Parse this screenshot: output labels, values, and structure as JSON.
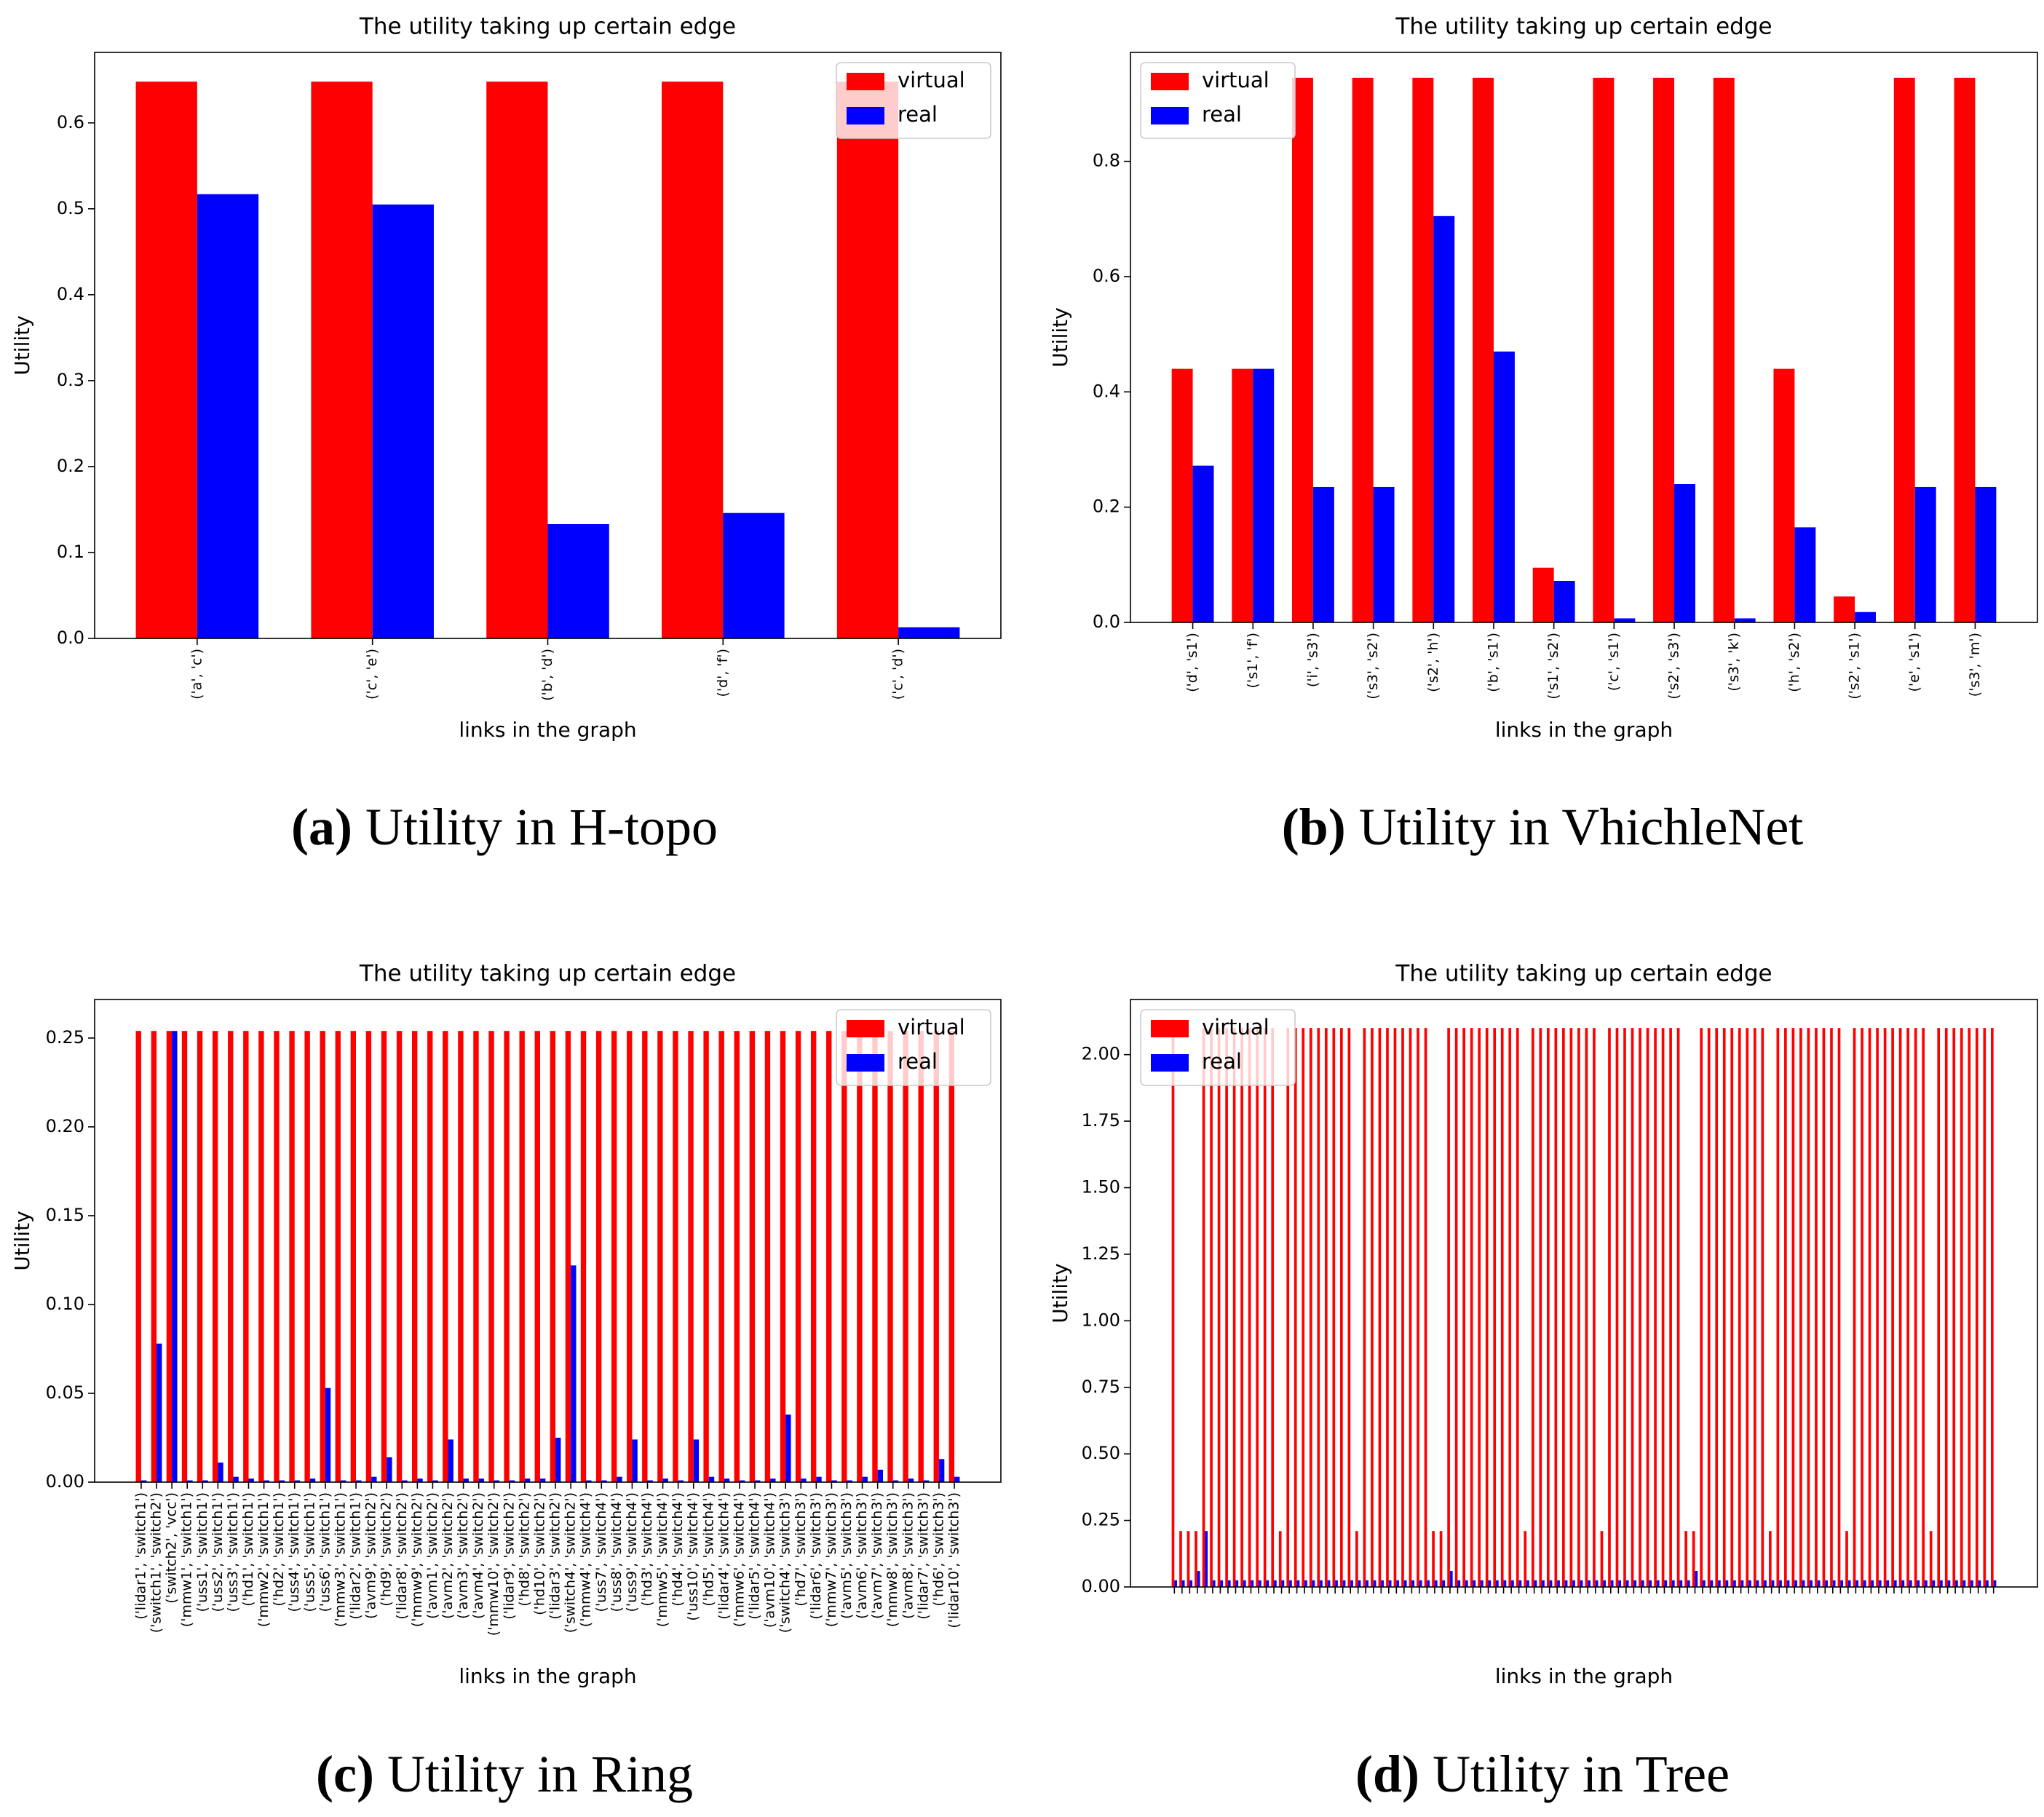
{
  "chart_data": [
    {
      "type": "bar",
      "title": "The utility taking up certain edge",
      "xlabel": "links in the graph",
      "ylabel": "Utility",
      "caption_label": "(a)",
      "caption": "Utility in H-topo",
      "legend": "upper right",
      "categories": [
        "('a', 'c')",
        "('c', 'e')",
        "('b', 'd')",
        "('d', 'f')",
        "('c', 'd')"
      ],
      "series": [
        {
          "name": "virtual",
          "color": "#ff0000",
          "values": [
            0.648,
            0.648,
            0.648,
            0.648,
            0.648
          ]
        },
        {
          "name": "real",
          "color": "#0000ff",
          "values": [
            0.517,
            0.505,
            0.133,
            0.146,
            0.013
          ]
        }
      ],
      "ylim": [
        0,
        0.682
      ],
      "yticks": [
        {
          "value": 0,
          "label": "0.0"
        },
        0.1,
        0.2,
        0.3,
        0.4,
        0.5,
        0.6
      ]
    },
    {
      "type": "bar",
      "title": "The utility taking up certain edge",
      "xlabel": "links in the graph",
      "ylabel": "Utility",
      "caption_label": "(b)",
      "caption": "Utility in VhichleNet",
      "legend": "upper left",
      "categories": [
        "('d', 's1')",
        "('s1', 'f')",
        "('i', 's3')",
        "('s3', 's2')",
        "('s2', 'h')",
        "('b', 's1')",
        "('s1', 's2')",
        "('c', 's1')",
        "('s2', 's3')",
        "('s3', 'k')",
        "('h', 's2')",
        "('s2', 's1')",
        "('e', 's1')",
        "('s3', 'm')"
      ],
      "series": [
        {
          "name": "virtual",
          "color": "#ff0000",
          "values": [
            0.44,
            0.44,
            0.945,
            0.945,
            0.945,
            0.945,
            0.095,
            0.945,
            0.945,
            0.945,
            0.44,
            0.045,
            0.945,
            0.945
          ]
        },
        {
          "name": "real",
          "color": "#0000ff",
          "values": [
            0.272,
            0.44,
            0.235,
            0.235,
            0.705,
            0.47,
            0.072,
            0.007,
            0.24,
            0.007,
            0.165,
            0.018,
            0.235,
            0.235
          ]
        }
      ],
      "ylim": [
        0,
        0.989
      ],
      "yticks": [
        {
          "value": 0,
          "label": "0.0"
        },
        0.2,
        0.4,
        0.6,
        0.8
      ]
    },
    {
      "type": "bar",
      "title": "The utility taking up certain edge",
      "xlabel": "links in the graph",
      "ylabel": "Utility",
      "caption_label": "(c)",
      "caption": "Utility in Ring",
      "legend": "upper right",
      "categories": [
        "('lidar1', 'switch1')",
        "('switch1', 'switch2')",
        "('switch2', 'vcc')",
        "('mmw1', 'switch1')",
        "('uss1', 'switch1')",
        "('uss2', 'switch1')",
        "('uss3', 'switch1')",
        "('hd1', 'switch1')",
        "('mmw2', 'switch1')",
        "('hd2', 'switch1')",
        "('uss4', 'switch1')",
        "('uss5', 'switch1')",
        "('uss6', 'switch1')",
        "('mmw3', 'switch1')",
        "('lidar2', 'switch1')",
        "('avm9', 'switch2')",
        "('hd9', 'switch2')",
        "('lidar8', 'switch2')",
        "('mmw9', 'switch2')",
        "('avm1', 'switch2')",
        "('avm2', 'switch2')",
        "('avm3', 'switch2')",
        "('avm4', 'switch2')",
        "('mmw10', 'switch2')",
        "('lidar9', 'switch2')",
        "('hd8', 'switch2')",
        "('hd10', 'switch2')",
        "('lidar3', 'switch2')",
        "('switch4', 'switch2')",
        "('mmw4', 'switch4')",
        "('uss7', 'switch4')",
        "('uss8', 'switch4')",
        "('uss9', 'switch4')",
        "('hd3', 'switch4')",
        "('mmw5', 'switch4')",
        "('hd4', 'switch4')",
        "('uss10', 'switch4')",
        "('hd5', 'switch4')",
        "('lidar4', 'switch4')",
        "('mmw6', 'switch4')",
        "('lidar5', 'switch4')",
        "('avm10', 'switch4')",
        "('switch4', 'switch3')",
        "('hd7', 'switch3')",
        "('lidar6', 'switch3')",
        "('mmw7', 'switch3')",
        "('avm5', 'switch3')",
        "('avm6', 'switch3')",
        "('avm7', 'switch3')",
        "('mmw8', 'switch3')",
        "('avm8', 'switch3')",
        "('lidar7', 'switch3')",
        "('hd6', 'switch3')",
        "('lidar10', 'switch3')"
      ],
      "series": [
        {
          "name": "virtual",
          "color": "#ff0000",
          "values": [
            0.254,
            0.254,
            0.254,
            0.254,
            0.254,
            0.254,
            0.254,
            0.254,
            0.254,
            0.254,
            0.254,
            0.254,
            0.254,
            0.254,
            0.254,
            0.254,
            0.254,
            0.254,
            0.254,
            0.254,
            0.254,
            0.254,
            0.254,
            0.254,
            0.254,
            0.254,
            0.254,
            0.254,
            0.254,
            0.254,
            0.254,
            0.254,
            0.254,
            0.254,
            0.254,
            0.254,
            0.254,
            0.254,
            0.254,
            0.254,
            0.254,
            0.254,
            0.254,
            0.254,
            0.254,
            0.254,
            0.254,
            0.254,
            0.254,
            0.254,
            0.254,
            0.254,
            0.254,
            0.254
          ]
        },
        {
          "name": "real",
          "color": "#0000ff",
          "values": [
            0.001,
            0.078,
            0.254,
            0.001,
            0.001,
            0.011,
            0.003,
            0.002,
            0.001,
            0.001,
            0.001,
            0.002,
            0.053,
            0.001,
            0.001,
            0.003,
            0.014,
            0.001,
            0.002,
            0.001,
            0.024,
            0.002,
            0.002,
            0.001,
            0.001,
            0.002,
            0.002,
            0.025,
            0.122,
            0.001,
            0.001,
            0.003,
            0.024,
            0.001,
            0.002,
            0.001,
            0.024,
            0.003,
            0.002,
            0.001,
            0.001,
            0.002,
            0.038,
            0.002,
            0.003,
            0.001,
            0.001,
            0.003,
            0.007,
            0.001,
            0.002,
            0.001,
            0.013,
            0.003
          ]
        }
      ],
      "ylim": [
        0,
        0.2717
      ],
      "yticks": [
        {
          "value": 0,
          "label": "0.00"
        },
        0.05,
        {
          "value": 0.1,
          "label": "0.10"
        },
        0.15,
        {
          "value": 0.2,
          "label": "0.20"
        },
        0.25
      ]
    },
    {
      "type": "bar",
      "title": "The utility taking up certain edge",
      "xlabel": "links in the graph",
      "ylabel": "Utility",
      "caption_label": "(d)",
      "caption": "Utility in Tree",
      "legend": "upper left",
      "categories": [
        null,
        null,
        null,
        null,
        null,
        null,
        null,
        null,
        null,
        null,
        null,
        null,
        null,
        null,
        null,
        null,
        null,
        null,
        null,
        null,
        null,
        null,
        null,
        null,
        null,
        null,
        null,
        null,
        null,
        null,
        null,
        null,
        null,
        null,
        null,
        null,
        null,
        null,
        null,
        null,
        null,
        null,
        null,
        null,
        null,
        null,
        null,
        null,
        null,
        null,
        null,
        null,
        null,
        null,
        null,
        null,
        null,
        null,
        null,
        null,
        null,
        null,
        null,
        null,
        null,
        null,
        null,
        null,
        null,
        null,
        null,
        null,
        null,
        null,
        null,
        null,
        null,
        null,
        null,
        null,
        null,
        null,
        null,
        null,
        null,
        null,
        null,
        null,
        null,
        null,
        null,
        null,
        null,
        null,
        null,
        null,
        null,
        null,
        null,
        null,
        null,
        null,
        null,
        null,
        null,
        null,
        null,
        null
      ],
      "series": [
        {
          "name": "virtual",
          "color": "#ff0000",
          "values": [
            2.1,
            0.21,
            0.21,
            0.21,
            2.1,
            2.1,
            2.1,
            2.1,
            2.1,
            2.1,
            2.1,
            2.1,
            2.1,
            2.1,
            0.21,
            2.1,
            2.1,
            2.1,
            2.1,
            2.1,
            2.1,
            2.1,
            2.1,
            2.1,
            0.21,
            2.1,
            2.1,
            2.1,
            2.1,
            2.1,
            2.1,
            2.1,
            2.1,
            2.1,
            0.21,
            0.21,
            2.1,
            2.1,
            2.1,
            2.1,
            2.1,
            2.1,
            2.1,
            2.1,
            2.1,
            2.1,
            0.21,
            2.1,
            2.1,
            2.1,
            2.1,
            2.1,
            2.1,
            2.1,
            2.1,
            2.1,
            0.21,
            2.1,
            2.1,
            2.1,
            2.1,
            2.1,
            2.1,
            2.1,
            2.1,
            2.1,
            2.1,
            0.21,
            0.21,
            2.1,
            2.1,
            2.1,
            2.1,
            2.1,
            2.1,
            2.1,
            2.1,
            2.1,
            0.21,
            2.1,
            2.1,
            2.1,
            2.1,
            2.1,
            2.1,
            2.1,
            2.1,
            2.1,
            0.21,
            2.1,
            2.1,
            2.1,
            2.1,
            2.1,
            2.1,
            2.1,
            2.1,
            2.1,
            2.1,
            0.21,
            2.1,
            2.1,
            2.1,
            2.1,
            2.1,
            2.1,
            2.1,
            2.1
          ]
        },
        {
          "name": "real",
          "color": "#0000ff",
          "values": [
            0.025,
            0.025,
            0.025,
            0.06,
            0.21,
            0.025,
            0.025,
            0.025,
            0.025,
            0.025,
            0.025,
            0.025,
            0.025,
            0.025,
            0.025,
            0.025,
            0.025,
            0.025,
            0.025,
            0.025,
            0.025,
            0.025,
            0.025,
            0.025,
            0.025,
            0.025,
            0.025,
            0.025,
            0.025,
            0.025,
            0.025,
            0.025,
            0.025,
            0.025,
            0.025,
            0.025,
            0.06,
            0.025,
            0.025,
            0.025,
            0.025,
            0.025,
            0.025,
            0.025,
            0.025,
            0.025,
            0.025,
            0.025,
            0.025,
            0.025,
            0.025,
            0.025,
            0.025,
            0.025,
            0.025,
            0.025,
            0.025,
            0.025,
            0.025,
            0.025,
            0.025,
            0.025,
            0.025,
            0.025,
            0.025,
            0.025,
            0.025,
            0.025,
            0.06,
            0.025,
            0.025,
            0.025,
            0.025,
            0.025,
            0.025,
            0.025,
            0.025,
            0.025,
            0.025,
            0.025,
            0.025,
            0.025,
            0.025,
            0.025,
            0.025,
            0.025,
            0.025,
            0.025,
            0.025,
            0.025,
            0.025,
            0.025,
            0.025,
            0.025,
            0.025,
            0.025,
            0.025,
            0.025,
            0.025,
            0.025,
            0.025,
            0.025,
            0.025,
            0.025,
            0.025,
            0.025,
            0.025,
            0.025
          ]
        }
      ],
      "ylim": [
        0,
        2.207
      ],
      "yticks": [
        {
          "value": 0,
          "label": "0.00"
        },
        0.25,
        {
          "value": 0.5,
          "label": "0.50"
        },
        0.75,
        {
          "value": 1,
          "label": "1.00"
        },
        1.25,
        {
          "value": 1.5,
          "label": "1.50"
        },
        1.75,
        {
          "value": 2,
          "label": "2.00"
        }
      ]
    }
  ]
}
